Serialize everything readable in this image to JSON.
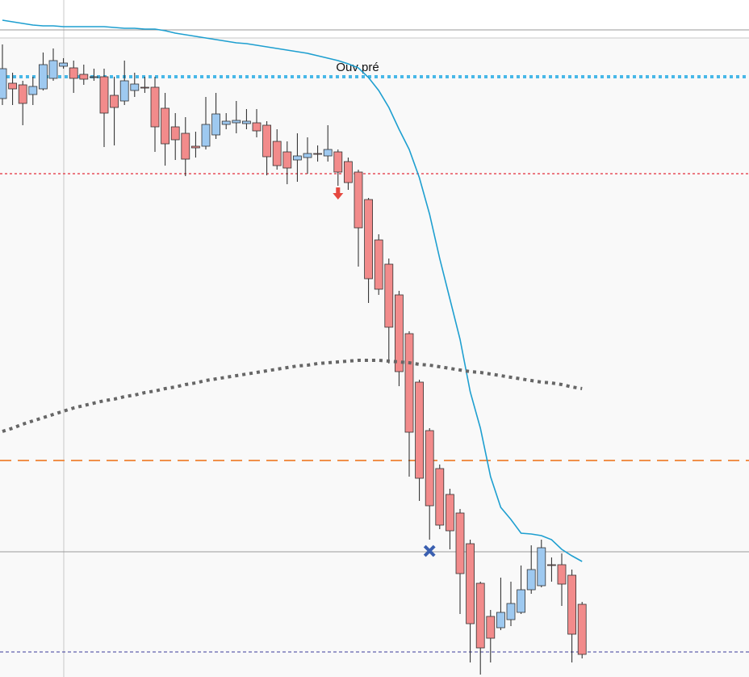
{
  "chart_data": {
    "type": "candlestick",
    "ylim": [
      0,
      838
    ],
    "categories": [
      null,
      null,
      null,
      null,
      null,
      null,
      null,
      null,
      null,
      null,
      null,
      null,
      null,
      null,
      null,
      null,
      null,
      null,
      null,
      null,
      null,
      null,
      null,
      null,
      null,
      null,
      null,
      null,
      null,
      null,
      null,
      null,
      null,
      null,
      null,
      null,
      null,
      null,
      null,
      null,
      null,
      null,
      null,
      null,
      null,
      null,
      null,
      null,
      null,
      null,
      null,
      null,
      null,
      null,
      null,
      null,
      null,
      null
    ],
    "up_color": "#9ec9f0",
    "down_color": "#f28b8b",
    "open": [
      716,
      735,
      733,
      721,
      728,
      741,
      756,
      754,
      746,
      742,
      743,
      720,
      713,
      726,
      730,
      730,
      704,
      681,
      673,
      657,
      657,
      671,
      684,
      686,
      685,
      686,
      683,
      663,
      650,
      640,
      643,
      648,
      645,
      650,
      638,
      625,
      591,
      541,
      511,
      473,
      425,
      365,
      305,
      258,
      226,
      203,
      165,
      116,
      75,
      61,
      71,
      80,
      108,
      113,
      139,
      139,
      126,
      90
    ],
    "high": [
      783,
      748,
      738,
      743,
      773,
      778,
      766,
      763,
      758,
      753,
      753,
      743,
      763,
      748,
      743,
      743,
      723,
      698,
      693,
      675,
      718,
      723,
      698,
      713,
      703,
      703,
      688,
      678,
      663,
      673,
      668,
      658,
      683,
      653,
      643,
      628,
      593,
      548,
      518,
      478,
      428,
      368,
      308,
      263,
      233,
      208,
      170,
      118,
      83,
      123,
      118,
      138,
      163,
      170,
      148,
      153,
      133,
      93
    ],
    "low": [
      708,
      708,
      683,
      708,
      726,
      738,
      753,
      723,
      733,
      738,
      656,
      658,
      708,
      718,
      723,
      650,
      633,
      640,
      620,
      643,
      653,
      666,
      678,
      673,
      678,
      668,
      621,
      628,
      610,
      613,
      623,
      638,
      638,
      608,
      603,
      508,
      463,
      473,
      388,
      360,
      248,
      218,
      170,
      183,
      158,
      78,
      18,
      3,
      18,
      58,
      63,
      78,
      103,
      111,
      118,
      88,
      18,
      23
    ],
    "close": [
      753,
      728,
      710,
      731,
      758,
      763,
      760,
      741,
      740,
      743,
      698,
      705,
      738,
      734,
      729,
      681,
      660,
      665,
      641,
      655,
      684,
      697,
      688,
      689,
      688,
      676,
      644,
      633,
      630,
      645,
      648,
      647,
      653,
      625,
      612,
      556,
      493,
      480,
      433,
      378,
      303,
      246,
      212,
      188,
      181,
      128,
      66,
      36,
      48,
      80,
      91,
      108,
      133,
      160,
      138,
      115,
      53,
      28
    ],
    "series": [
      {
        "color": "#1e9fd0",
        "style": "solid",
        "values": [
          813,
          811,
          809,
          807,
          806,
          806,
          805,
          805,
          805,
          805,
          805,
          804,
          803,
          803,
          802,
          802,
          800,
          797,
          795,
          793,
          791,
          789,
          787,
          785,
          784,
          782,
          780,
          778,
          776,
          774,
          772,
          769,
          766,
          763,
          759,
          754,
          742,
          726,
          705,
          678,
          653,
          618,
          573,
          518,
          468,
          418,
          353,
          308,
          248,
          210,
          195,
          178,
          177,
          175,
          170,
          158,
          150,
          143
        ]
      },
      {
        "color": "#666666",
        "style": "dotted",
        "values": [
          304,
          308,
          313,
          317,
          321,
          325,
          329,
          333,
          336,
          339,
          342,
          344,
          347,
          349,
          352,
          354,
          357,
          359,
          362,
          364,
          367,
          369,
          371,
          373,
          375,
          377,
          379,
          381,
          383,
          385,
          386,
          388,
          389,
          390,
          391,
          392,
          392,
          392,
          391,
          390,
          389,
          387,
          386,
          384,
          382,
          380,
          378,
          377,
          375,
          373,
          371,
          369,
          367,
          365,
          364,
          362,
          359,
          357
        ]
      }
    ],
    "levels": [
      {
        "value": 801,
        "color": "#9a9a9a",
        "style": "solid"
      },
      {
        "value": 791,
        "color": "#c8c8c8",
        "style": "solid"
      },
      {
        "value": 743,
        "color": "#48b8e8",
        "style": "dotted-thick",
        "label": "Ouv pré"
      },
      {
        "value": 623,
        "color": "#e8505a",
        "style": "dotted"
      },
      {
        "value": 268,
        "color": "#f0904a",
        "style": "dashed"
      },
      {
        "value": 155,
        "color": "#9a9a9a",
        "style": "solid"
      },
      {
        "value": 31,
        "color": "#3a3a9a",
        "style": "dashed-thin"
      }
    ],
    "markers": [
      {
        "at": 33,
        "value": 598,
        "shape": "arrow-down",
        "color": "#e5483f"
      },
      {
        "at": 42,
        "value": 156,
        "shape": "cross",
        "color": "#3a5fb0"
      }
    ]
  }
}
